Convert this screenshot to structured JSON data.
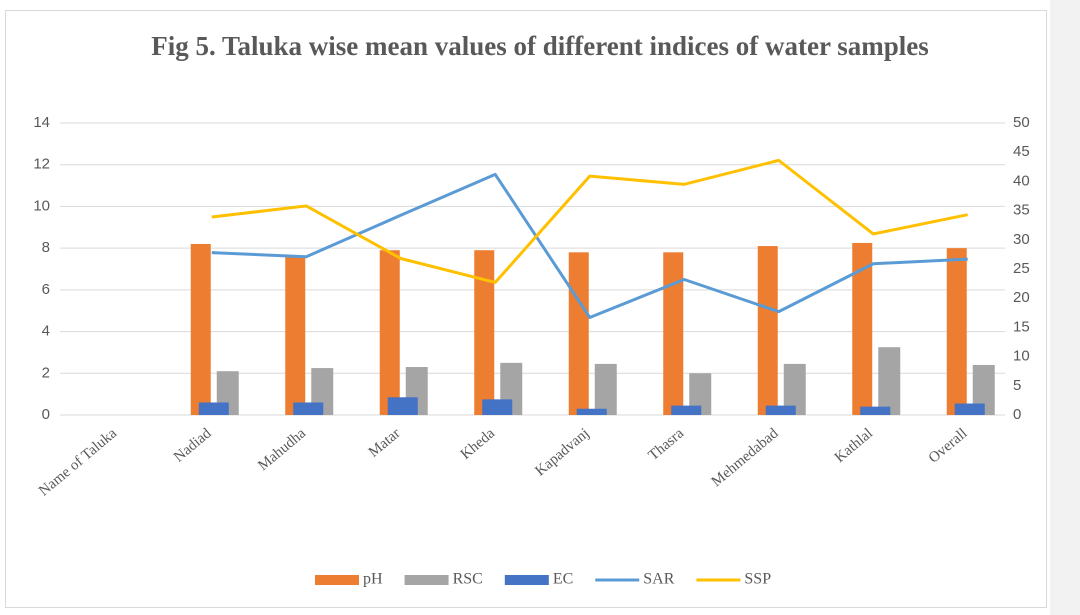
{
  "chart_data": {
    "type": "bar-line",
    "title": "Fig 5. Taluka wise mean values of different indices of water samples",
    "categories": [
      "Name of Taluka",
      "Nadiad",
      "Mahudha",
      "Matar",
      "Kheda",
      "Kapadvanj",
      "Thasra",
      "Mehmedabad",
      "Kathlal",
      "Overall"
    ],
    "series": [
      {
        "name": "pH",
        "type": "bar",
        "color": "#ed7d31",
        "values": [
          null,
          8.2,
          7.6,
          7.9,
          7.9,
          7.8,
          7.8,
          8.1,
          8.25,
          8.0
        ]
      },
      {
        "name": "RSC",
        "type": "bar",
        "color": "#a5a5a5",
        "values": [
          null,
          2.1,
          2.25,
          2.3,
          2.5,
          2.45,
          2.0,
          2.45,
          3.25,
          2.4
        ]
      },
      {
        "name": "EC",
        "type": "bar",
        "color": "#4472c4",
        "values": [
          null,
          0.6,
          0.6,
          0.85,
          0.75,
          0.3,
          0.45,
          0.45,
          0.4,
          0.55
        ]
      },
      {
        "name": "SAR",
        "type": "line",
        "axis": "y2",
        "color": "#5b9bd5",
        "values": [
          null,
          27.8,
          27.1,
          34.2,
          41.2,
          16.7,
          23.2,
          17.7,
          25.9,
          26.7
        ]
      },
      {
        "name": "SSP",
        "type": "line",
        "axis": "y2",
        "color": "#ffc000",
        "values": [
          null,
          33.9,
          35.8,
          26.8,
          22.7,
          40.9,
          39.5,
          43.6,
          31.0,
          34.3
        ]
      }
    ],
    "ylim": [
      0,
      14
    ],
    "yticks": [
      0,
      2,
      4,
      6,
      8,
      10,
      12,
      14
    ],
    "y2lim": [
      0,
      50
    ],
    "y2ticks": [
      0,
      5,
      10,
      15,
      20,
      25,
      30,
      35,
      40,
      45,
      50
    ],
    "grid": true,
    "legend": "bottom"
  }
}
